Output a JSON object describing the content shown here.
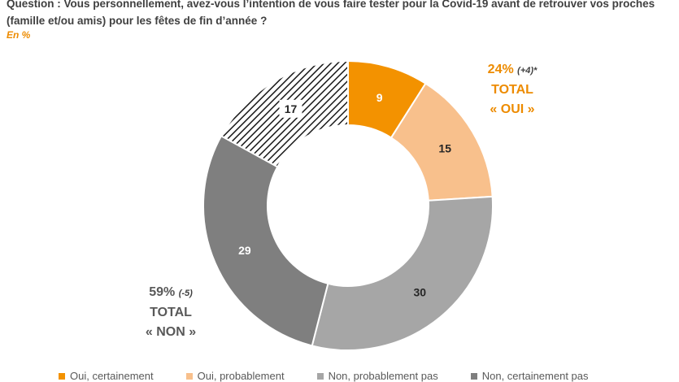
{
  "question": "Question : Vous personnellement, avez-vous l’intention de vous faire tester pour la Covid-19 avant de retrouver vos proches (famille et/ou amis) pour les fêtes de fin d’année ?",
  "unit": "En %",
  "chart_data": {
    "type": "pie",
    "categories": [
      "Oui, certainement",
      "Oui, probablement",
      "Non, probablement pas",
      "Non, certainement pas",
      ""
    ],
    "values": [
      9,
      15,
      30,
      29,
      17
    ],
    "colors": [
      "#F39200",
      "#F8C08C",
      "#A6A6A6",
      "#7F7F7F",
      "#ffffff"
    ],
    "hatched_slice_index": 4,
    "annotations": {
      "oui": {
        "value": "24%",
        "delta": "(+4)*",
        "line1": "TOTAL",
        "line2": "« OUI »"
      },
      "non": {
        "value": "59%",
        "delta": "(-5)",
        "line1": "TOTAL",
        "line2": "« NON »"
      }
    },
    "legend": [
      {
        "label": "Oui, certainement",
        "color": "#F39200"
      },
      {
        "label": "Oui, probablement",
        "color": "#F8C08C"
      },
      {
        "label": "Non, probablement pas",
        "color": "#A6A6A6"
      },
      {
        "label": "Non, certainement pas",
        "color": "#7F7F7F"
      }
    ]
  }
}
